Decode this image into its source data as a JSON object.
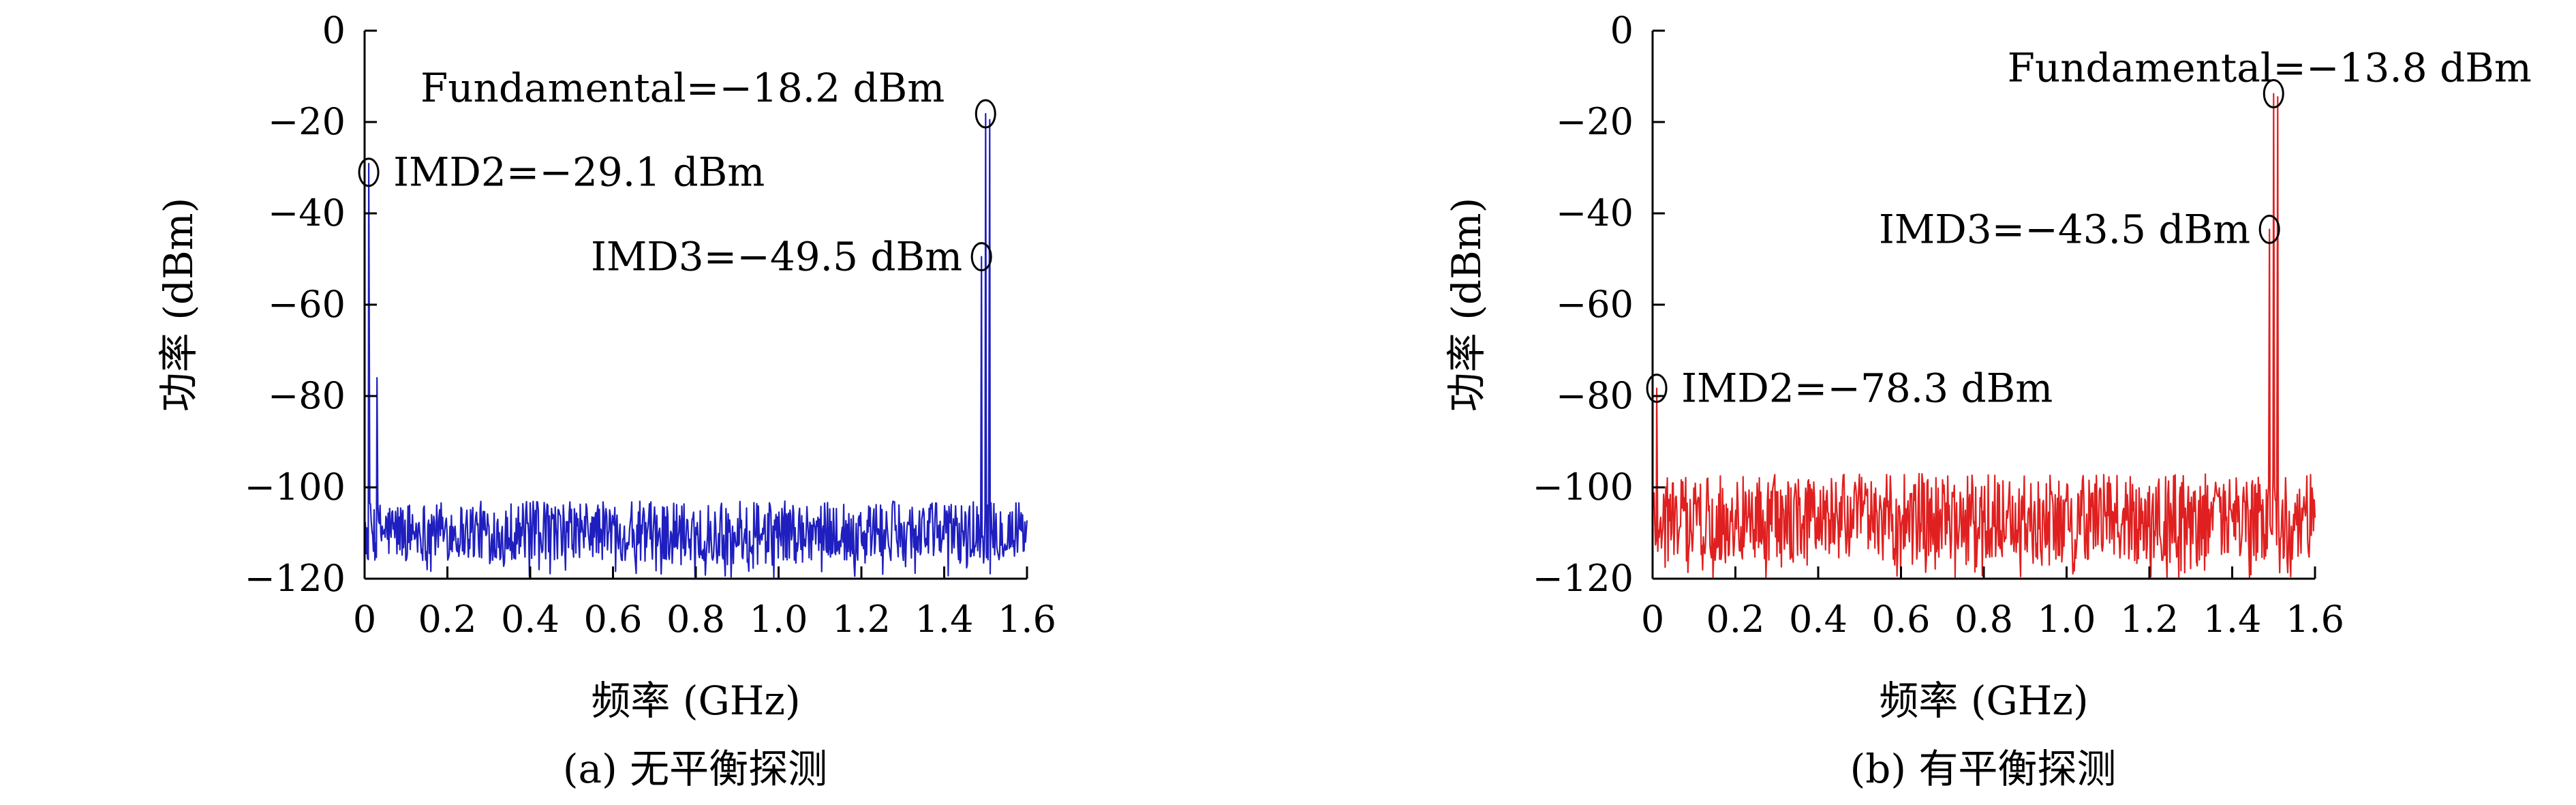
{
  "chart_data": [
    {
      "type": "line",
      "caption": "(a) 无平衡探测",
      "xlabel": "频率 (GHz)",
      "ylabel": "功率 (dBm)",
      "xlim": [
        0,
        1.6
      ],
      "ylim": [
        -120,
        0
      ],
      "xticks": [
        0,
        0.2,
        0.4,
        0.6,
        0.8,
        1.0,
        1.2,
        1.4,
        1.6
      ],
      "xtick_labels": [
        "0",
        "0.2",
        "0.4",
        "0.6",
        "0.8",
        "1.0",
        "1.2",
        "1.4",
        "1.6"
      ],
      "yticks": [
        0,
        -20,
        -40,
        -60,
        -80,
        -100,
        -120
      ],
      "ytick_labels": [
        "0",
        "−20",
        "−40",
        "−60",
        "−80",
        "−100",
        "−120"
      ],
      "grid": false,
      "line_color": "#1f1fbf",
      "noise_floor": {
        "x_range": [
          0,
          1.6
        ],
        "y_range": [
          -120,
          -103
        ]
      },
      "peaks": [
        {
          "x": 0.01,
          "y": -29.1
        },
        {
          "x": 0.03,
          "y": -76
        },
        {
          "x": 1.49,
          "y": -49.5
        },
        {
          "x": 1.5,
          "y": -18.2
        },
        {
          "x": 1.51,
          "y": -19.5
        }
      ],
      "annotations": [
        {
          "text": "Fundamental=−18.2 dBm",
          "x": 1.5,
          "y": -18.2
        },
        {
          "text": "IMD2=−29.1 dBm",
          "x": 0.01,
          "y": -31
        },
        {
          "text": "IMD3=−49.5 dBm",
          "x": 1.49,
          "y": -49.5
        }
      ]
    },
    {
      "type": "line",
      "caption": "(b) 有平衡探测",
      "xlabel": "频率 (GHz)",
      "ylabel": "功率 (dBm)",
      "xlim": [
        0,
        1.6
      ],
      "ylim": [
        -120,
        0
      ],
      "xticks": [
        0,
        0.2,
        0.4,
        0.6,
        0.8,
        1.0,
        1.2,
        1.4,
        1.6
      ],
      "xtick_labels": [
        "0",
        "0.2",
        "0.4",
        "0.6",
        "0.8",
        "1.0",
        "1.2",
        "1.4",
        "1.6"
      ],
      "yticks": [
        0,
        -20,
        -40,
        -60,
        -80,
        -100,
        -120
      ],
      "ytick_labels": [
        "0",
        "−20",
        "−40",
        "−60",
        "−80",
        "−100",
        "−120"
      ],
      "grid": false,
      "line_color": "#e02020",
      "noise_floor": {
        "x_range": [
          0,
          1.6
        ],
        "y_range": [
          -120,
          -97
        ]
      },
      "peaks": [
        {
          "x": 0.01,
          "y": -78.3
        },
        {
          "x": 1.49,
          "y": -43.5
        },
        {
          "x": 1.5,
          "y": -13.8
        },
        {
          "x": 1.51,
          "y": -14.5
        }
      ],
      "annotations": [
        {
          "text": "Fundamental=−13.8 dBm",
          "x": 1.5,
          "y": -13.8
        },
        {
          "text": "IMD3=−43.5 dBm",
          "x": 1.49,
          "y": -43.5
        },
        {
          "text": "IMD2=−78.3 dBm",
          "x": 0.01,
          "y": -78.3
        }
      ]
    }
  ]
}
